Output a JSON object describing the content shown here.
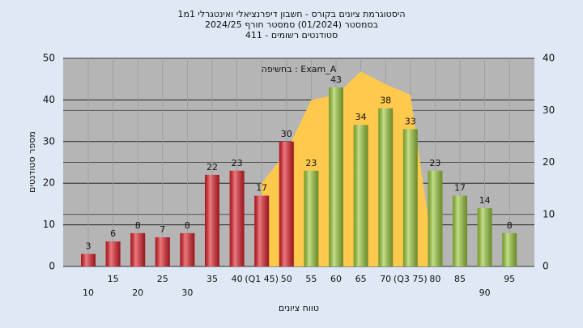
{
  "chart_data": {
    "type": "bar",
    "title": [
      "היסטוגרמת ציונים בקורס - חשבון דיפרנציאלי ואינטגרלי 1מ1",
      "בסמסטר  (01/2024)  סמסטר חורף 2024/25",
      "סטודנטים רשומים - 411"
    ],
    "annotation": "בחשיפה : Exam_A",
    "x_label": "טווח ציונים",
    "y_label": "מספר סטודנטים",
    "categories": [
      "10",
      "15",
      "20",
      "25",
      "30",
      "35",
      "40",
      "(Q1 45)",
      "50",
      "55",
      "60",
      "65",
      "70",
      "(Q3 75)",
      "80",
      "85",
      "90",
      "95"
    ],
    "series": [
      {
        "values": [
          3,
          6,
          8,
          7,
          8,
          22,
          23,
          17,
          30,
          23,
          43,
          34,
          38,
          33,
          23,
          17,
          14,
          8
        ],
        "colors": [
          "#e0202a",
          "#e0202a",
          "#e0202a",
          "#e0202a",
          "#e0202a",
          "#e0202a",
          "#e0202a",
          "#e0202a",
          "#e0202a",
          "#9ccb3b",
          "#9ccb3b",
          "#9ccb3b",
          "#9ccb3b",
          "#9ccb3b",
          "#9ccb3b",
          "#9ccb3b",
          "#9ccb3b",
          "#9ccb3b"
        ]
      },
      {
        "type": "area",
        "axis": "y2",
        "color": "#ffc94d",
        "values": [
          null,
          null,
          null,
          null,
          null,
          null,
          null,
          16,
          22,
          32,
          33,
          37.5,
          35,
          33,
          0,
          null,
          null,
          null
        ]
      }
    ],
    "ylim": [
      0,
      50
    ],
    "yticks": [
      0,
      10,
      20,
      30,
      40,
      50
    ],
    "y2lim": [
      0,
      40
    ],
    "y2ticks": [
      0,
      10,
      20,
      30,
      40
    ],
    "grid": true
  }
}
